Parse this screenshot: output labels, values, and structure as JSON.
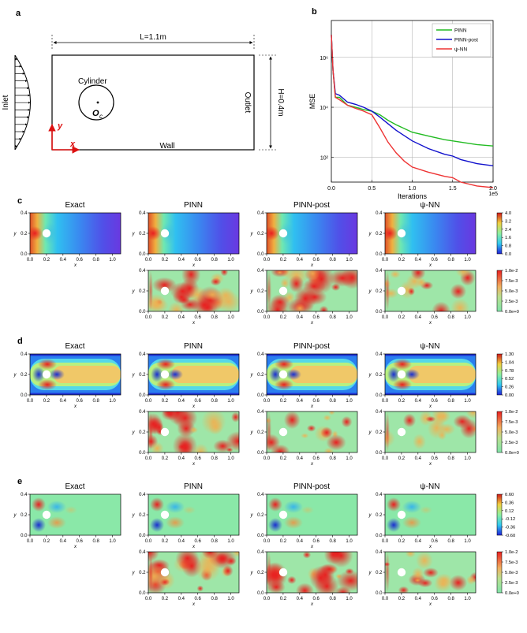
{
  "panels": {
    "a": "a",
    "b": "b",
    "c": "c",
    "d": "d",
    "e": "e"
  },
  "schematic": {
    "length_label": "L=1.1m",
    "height_label": "H=0.4m",
    "cylinder_label": "Cylinder",
    "center_label": "O",
    "center_sub": "c",
    "inlet_label": "Inlet",
    "outlet_label": "Outlet",
    "wall_label": "Wall",
    "y_axis": "y",
    "x_axis": "x"
  },
  "colors": {
    "pinn": "#22bb22",
    "pinn_post": "#1010cc",
    "psi_nn": "#ee3333",
    "axis_red": "#dd1111"
  },
  "chart_data": [
    {
      "type": "line",
      "ylabel": "MSE",
      "xlabel": "Iterations",
      "x_scale_note": "1e5",
      "y_scale": "log",
      "xlim": [
        0,
        2.0
      ],
      "xticks": [
        "0.0",
        "0.5",
        "1.0",
        "1.5",
        "2.0"
      ],
      "yticks": [
        "10²",
        "10⁴",
        "10⁶"
      ],
      "ylim": [
        10,
        30000000
      ],
      "grid": true,
      "legend_position": "top-right",
      "series": [
        {
          "name": "PINN",
          "x": [
            0.0,
            0.02,
            0.05,
            0.1,
            0.2,
            0.3,
            0.4,
            0.5,
            0.6,
            0.7,
            0.8,
            1.0,
            1.2,
            1.4,
            1.6,
            1.8,
            2.0
          ],
          "y": [
            8000000,
            300000,
            25000,
            25000,
            12000,
            10000,
            8000,
            7000,
            5000,
            3000,
            2000,
            1000,
            700,
            500,
            400,
            320,
            280
          ]
        },
        {
          "name": "PINN-post",
          "x": [
            0.0,
            0.02,
            0.05,
            0.1,
            0.2,
            0.3,
            0.4,
            0.5,
            0.6,
            0.7,
            0.8,
            1.0,
            1.2,
            1.4,
            1.5,
            1.6,
            1.8,
            2.0
          ],
          "y": [
            8000000,
            300000,
            35000,
            30000,
            16000,
            13000,
            10000,
            7000,
            4000,
            2200,
            1200,
            450,
            220,
            130,
            110,
            80,
            55,
            45
          ]
        },
        {
          "name": "ψ-NN",
          "x": [
            0.0,
            0.02,
            0.05,
            0.1,
            0.2,
            0.3,
            0.4,
            0.5,
            0.6,
            0.7,
            0.8,
            0.9,
            1.0,
            1.2,
            1.4,
            1.5,
            1.6,
            1.8,
            2.0
          ],
          "y": [
            8000000,
            300000,
            25000,
            20000,
            12000,
            9000,
            7000,
            5000,
            1500,
            400,
            150,
            70,
            40,
            25,
            17,
            15,
            10,
            7,
            6
          ]
        }
      ]
    },
    {
      "type": "heatmap",
      "panel": "c",
      "titles": [
        "Exact",
        "PINN",
        "PINN-post",
        "ψ-NN"
      ],
      "xlabel": "x",
      "ylabel": "y",
      "xticks": [
        "0.0",
        "0.2",
        "0.4",
        "0.6",
        "0.8",
        "1.0"
      ],
      "yticks": [
        "0.0",
        "0.2",
        "0.4"
      ],
      "value_colorbar": [
        "4.0",
        "3.2",
        "2.4",
        "1.6",
        "0.8",
        "0.0"
      ],
      "error_colorbar": [
        "1.0e-2",
        "7.5e-3",
        "5.0e-3",
        "2.5e-3",
        "0.0e+0"
      ]
    },
    {
      "type": "heatmap",
      "panel": "d",
      "titles": [
        "Exact",
        "PINN",
        "PINN-post",
        "ψ-NN"
      ],
      "xlabel": "x",
      "ylabel": "y",
      "xticks": [
        "0.0",
        "0.2",
        "0.4",
        "0.6",
        "0.8",
        "1.0"
      ],
      "yticks": [
        "0.0",
        "0.2",
        "0.4"
      ],
      "value_colorbar": [
        "1.30",
        "1.04",
        "0.78",
        "0.52",
        "0.26",
        "0.00"
      ],
      "error_colorbar": [
        "1.0e-2",
        "7.5e-3",
        "5.0e-3",
        "2.5e-3",
        "0.0e+0"
      ]
    },
    {
      "type": "heatmap",
      "panel": "e",
      "titles": [
        "Exact",
        "PINN",
        "PINN-post",
        "ψ-NN"
      ],
      "xlabel": "x",
      "ylabel": "y",
      "xticks": [
        "0.0",
        "0.2",
        "0.4",
        "0.6",
        "0.8",
        "1.0"
      ],
      "yticks": [
        "0.0",
        "0.2",
        "0.4"
      ],
      "value_colorbar": [
        "0.60",
        "0.36",
        "0.12",
        "-0.12",
        "-0.36",
        "-0.60"
      ],
      "error_colorbar": [
        "1.0e-2",
        "7.5e-3",
        "5.0e-3",
        "2.5e-3",
        "0.0e+0"
      ]
    }
  ]
}
